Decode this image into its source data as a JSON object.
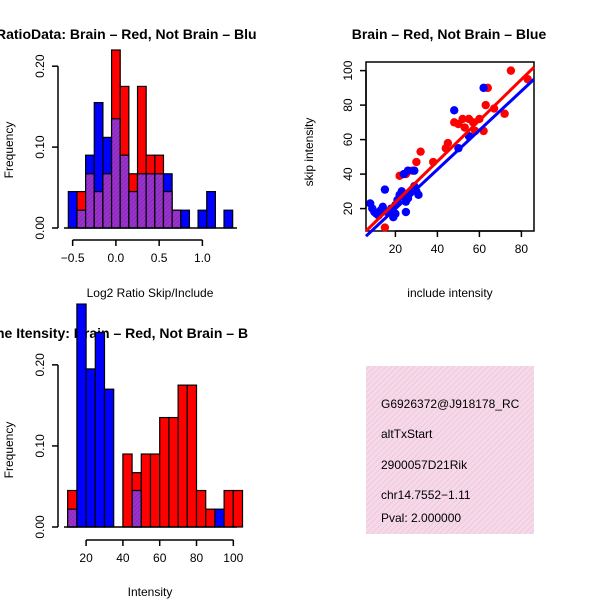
{
  "colors": {
    "red": "#ff0000",
    "blue": "#0000ff",
    "purple": "#9933cc",
    "info_bg": "#f4cfe4",
    "pval": "#aa0000"
  },
  "chart_data": [
    {
      "type": "bar",
      "title": "RatioData: Brain – Red, Not Brain – Blu",
      "xlabel": "Log2 Ratio Skip/Include",
      "ylabel": "Frequency",
      "xlim": [
        -0.6,
        1.4
      ],
      "ylim": [
        0,
        0.22
      ],
      "xticks": [
        -0.5,
        0.0,
        0.5,
        1.0
      ],
      "xtick_labels": [
        "−0.5",
        "0.0",
        "0.5",
        "1.0"
      ],
      "yticks": [
        0.0,
        0.1,
        0.2
      ],
      "ytick_labels": [
        "0.00",
        "0.10",
        "0.20"
      ],
      "bin_start": -0.55,
      "bin_width": 0.1,
      "series": [
        {
          "name": "Brain",
          "color": "red",
          "values": [
            0,
            0.045,
            0.067,
            0.045,
            0.067,
            0.22,
            0.175,
            0.067,
            0.175,
            0.09,
            0.09,
            0.045,
            0.022,
            0,
            0,
            0,
            0,
            0,
            0
          ]
        },
        {
          "name": "Not Brain",
          "color": "blue",
          "values": [
            0.045,
            0.022,
            0.09,
            0.155,
            0.112,
            0.135,
            0.09,
            0.045,
            0.067,
            0.067,
            0.067,
            0.067,
            0.022,
            0.022,
            0,
            0.022,
            0.045,
            0,
            0.022
          ]
        }
      ]
    },
    {
      "type": "scatter",
      "title": "Brain – Red, Not Brain – Blue",
      "xlabel": "include intensity",
      "ylabel": "skip intensity",
      "xlim": [
        6,
        86
      ],
      "ylim": [
        7,
        105
      ],
      "xticks": [
        20,
        40,
        60,
        80
      ],
      "xtick_labels": [
        "20",
        "40",
        "60",
        "80"
      ],
      "yticks": [
        20,
        40,
        60,
        80,
        100
      ],
      "ytick_labels": [
        "20",
        "40",
        "60",
        "80",
        "100"
      ],
      "series": [
        {
          "name": "Brain",
          "color": "red",
          "points": [
            [
              75,
              100
            ],
            [
              83,
              95
            ],
            [
              64,
              90
            ],
            [
              52,
              72
            ],
            [
              55,
              72
            ],
            [
              57,
              70
            ],
            [
              60,
              72
            ],
            [
              62,
              65
            ],
            [
              63,
              80
            ],
            [
              67,
              78
            ],
            [
              72,
              75
            ],
            [
              58,
              65
            ],
            [
              45,
              58
            ],
            [
              48,
              70
            ],
            [
              50,
              69
            ],
            [
              53,
              67
            ],
            [
              44,
              55
            ],
            [
              38,
              47
            ],
            [
              30,
              47
            ],
            [
              32,
              53
            ],
            [
              22,
              39
            ],
            [
              25,
              40
            ],
            [
              28,
              42
            ],
            [
              15,
              9
            ]
          ]
        },
        {
          "name": "Not Brain",
          "color": "blue",
          "points": [
            [
              62,
              90
            ],
            [
              48,
              77
            ],
            [
              55,
              62
            ],
            [
              50,
              55
            ],
            [
              8,
              23
            ],
            [
              9,
              20
            ],
            [
              10,
              18
            ],
            [
              11,
              17
            ],
            [
              12,
              16
            ],
            [
              13,
              19
            ],
            [
              14,
              21
            ],
            [
              15,
              31
            ],
            [
              16,
              18
            ],
            [
              18,
              20
            ],
            [
              19,
              15
            ],
            [
              20,
              22
            ],
            [
              21,
              25
            ],
            [
              22,
              28
            ],
            [
              23,
              30
            ],
            [
              24,
              27
            ],
            [
              25,
              24
            ],
            [
              26,
              26
            ],
            [
              27,
              29
            ],
            [
              28,
              31
            ],
            [
              29,
              33
            ],
            [
              30,
              30
            ],
            [
              31,
              28
            ],
            [
              24,
              40
            ],
            [
              26,
              42
            ],
            [
              29,
              42
            ],
            [
              25,
              18
            ],
            [
              18,
              18
            ],
            [
              20,
              17
            ]
          ]
        }
      ],
      "fit_lines": [
        {
          "color": "red",
          "x": [
            6,
            86
          ],
          "y": [
            7,
            102
          ]
        },
        {
          "color": "blue",
          "x": [
            6,
            86
          ],
          "y": [
            4,
            95
          ]
        }
      ]
    },
    {
      "type": "bar",
      "title": "ne Itensity: Brain – Red, Not Brain – B",
      "xlabel": "Intensity",
      "ylabel": "Frequency",
      "xlim": [
        8,
        102
      ],
      "ylim": [
        0,
        0.28
      ],
      "xticks": [
        20,
        40,
        60,
        80,
        100
      ],
      "xtick_labels": [
        "20",
        "40",
        "60",
        "80",
        "100"
      ],
      "yticks": [
        0.0,
        0.1,
        0.2
      ],
      "ytick_labels": [
        "0.00",
        "0.10",
        "0.20"
      ],
      "bin_start": 10,
      "bin_width": 5,
      "series": [
        {
          "name": "Brain",
          "color": "red",
          "values": [
            0.045,
            0,
            0,
            0,
            0,
            0,
            0.09,
            0.067,
            0.09,
            0.09,
            0.135,
            0.135,
            0.175,
            0.175,
            0.045,
            0.022,
            0,
            0.045,
            0.045
          ]
        },
        {
          "name": "Not Brain",
          "color": "blue",
          "values": [
            0.022,
            0.275,
            0.195,
            0.24,
            0.17,
            0,
            0,
            0.045,
            0,
            0,
            0,
            0,
            0,
            0,
            0,
            0,
            0.022,
            0,
            0
          ]
        }
      ]
    }
  ],
  "info_panel": {
    "lines": [
      "G6926372@J918178_RC",
      "altTxStart",
      "2900057D21Rik",
      "chr14.7552−1.11"
    ],
    "pval": "Pval: 2.000000"
  }
}
